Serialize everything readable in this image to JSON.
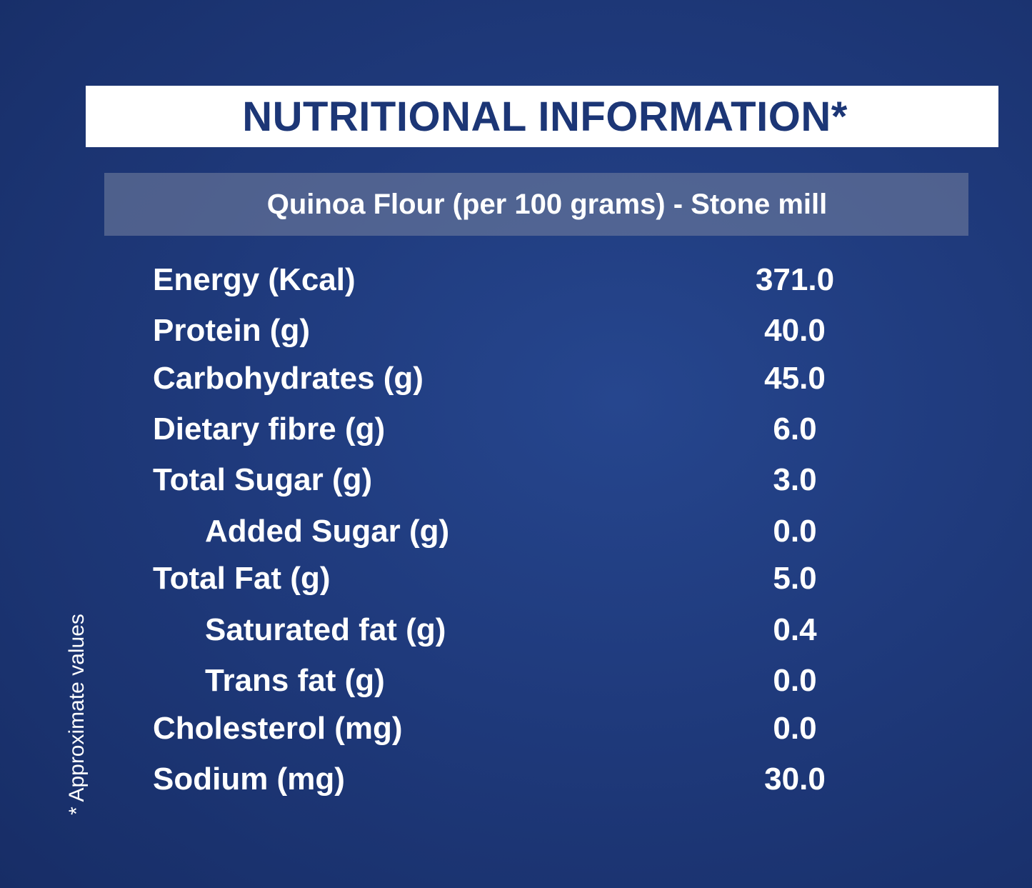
{
  "header": {
    "title": "NUTRITIONAL INFORMATION*",
    "subtitle": "Quinoa Flour (per 100 grams) - Stone mill"
  },
  "table": {
    "rows": [
      {
        "label": "Energy (Kcal)",
        "value": "371.0"
      },
      {
        "label": "Protein (g)",
        "value": "40.0"
      },
      {
        "label": "Carbohydrates (g)",
        "value": "45.0"
      },
      {
        "label": "Dietary fibre (g)",
        "value": "6.0"
      },
      {
        "label": "Total Sugar (g)",
        "value": "3.0",
        "sub": [
          {
            "label": "Added Sugar (g)",
            "value": "0.0"
          }
        ]
      },
      {
        "label": "Total Fat (g)",
        "value": "5.0",
        "sub": [
          {
            "label": "Saturated fat (g)",
            "value": "0.4"
          },
          {
            "label": "Trans fat (g)",
            "value": "0.0"
          }
        ]
      },
      {
        "label": "Cholesterol (mg)",
        "value": "0.0"
      },
      {
        "label": "Sodium (mg)",
        "value": "30.0"
      }
    ]
  },
  "footnote": "* Approximate values"
}
